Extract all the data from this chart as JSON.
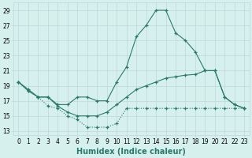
{
  "title": "",
  "xlabel": "Humidex (Indice chaleur)",
  "x": [
    0,
    1,
    2,
    3,
    4,
    5,
    6,
    7,
    8,
    9,
    10,
    11,
    12,
    13,
    14,
    15,
    16,
    17,
    18,
    19,
    20,
    21,
    22,
    23
  ],
  "y_top": [
    19.5,
    18.5,
    17.5,
    17.5,
    16.5,
    16.5,
    17.5,
    17.5,
    17.0,
    17.0,
    19.5,
    21.5,
    25.5,
    27.0,
    29.0,
    29.0,
    26.0,
    25.0,
    23.5,
    21.0,
    21.0,
    17.5,
    16.5,
    16.0
  ],
  "y_mid": [
    19.5,
    18.3,
    17.5,
    17.5,
    16.3,
    15.5,
    15.0,
    15.0,
    15.0,
    15.5,
    16.5,
    17.5,
    18.5,
    19.0,
    19.5,
    20.0,
    20.2,
    20.4,
    20.5,
    21.0,
    21.0,
    17.5,
    16.5,
    16.0
  ],
  "y_bot": [
    19.5,
    18.3,
    17.5,
    16.3,
    16.0,
    15.0,
    14.5,
    13.5,
    13.5,
    13.5,
    14.0,
    16.0,
    16.0,
    16.0,
    16.0,
    16.0,
    16.0,
    16.0,
    16.0,
    16.0,
    16.0,
    16.0,
    16.0,
    16.0
  ],
  "ylim_min": 12.5,
  "ylim_max": 30.0,
  "xlim_min": -0.5,
  "xlim_max": 23.5,
  "yticks": [
    13,
    15,
    17,
    19,
    21,
    23,
    25,
    27,
    29
  ],
  "xticks": [
    0,
    1,
    2,
    3,
    4,
    5,
    6,
    7,
    8,
    9,
    10,
    11,
    12,
    13,
    14,
    15,
    16,
    17,
    18,
    19,
    20,
    21,
    22,
    23
  ],
  "line_color": "#2a7a6a",
  "bg_color": "#d6f0ee",
  "grid_color": "#c0d8d8",
  "tick_fontsize": 5.5,
  "label_fontsize": 7
}
